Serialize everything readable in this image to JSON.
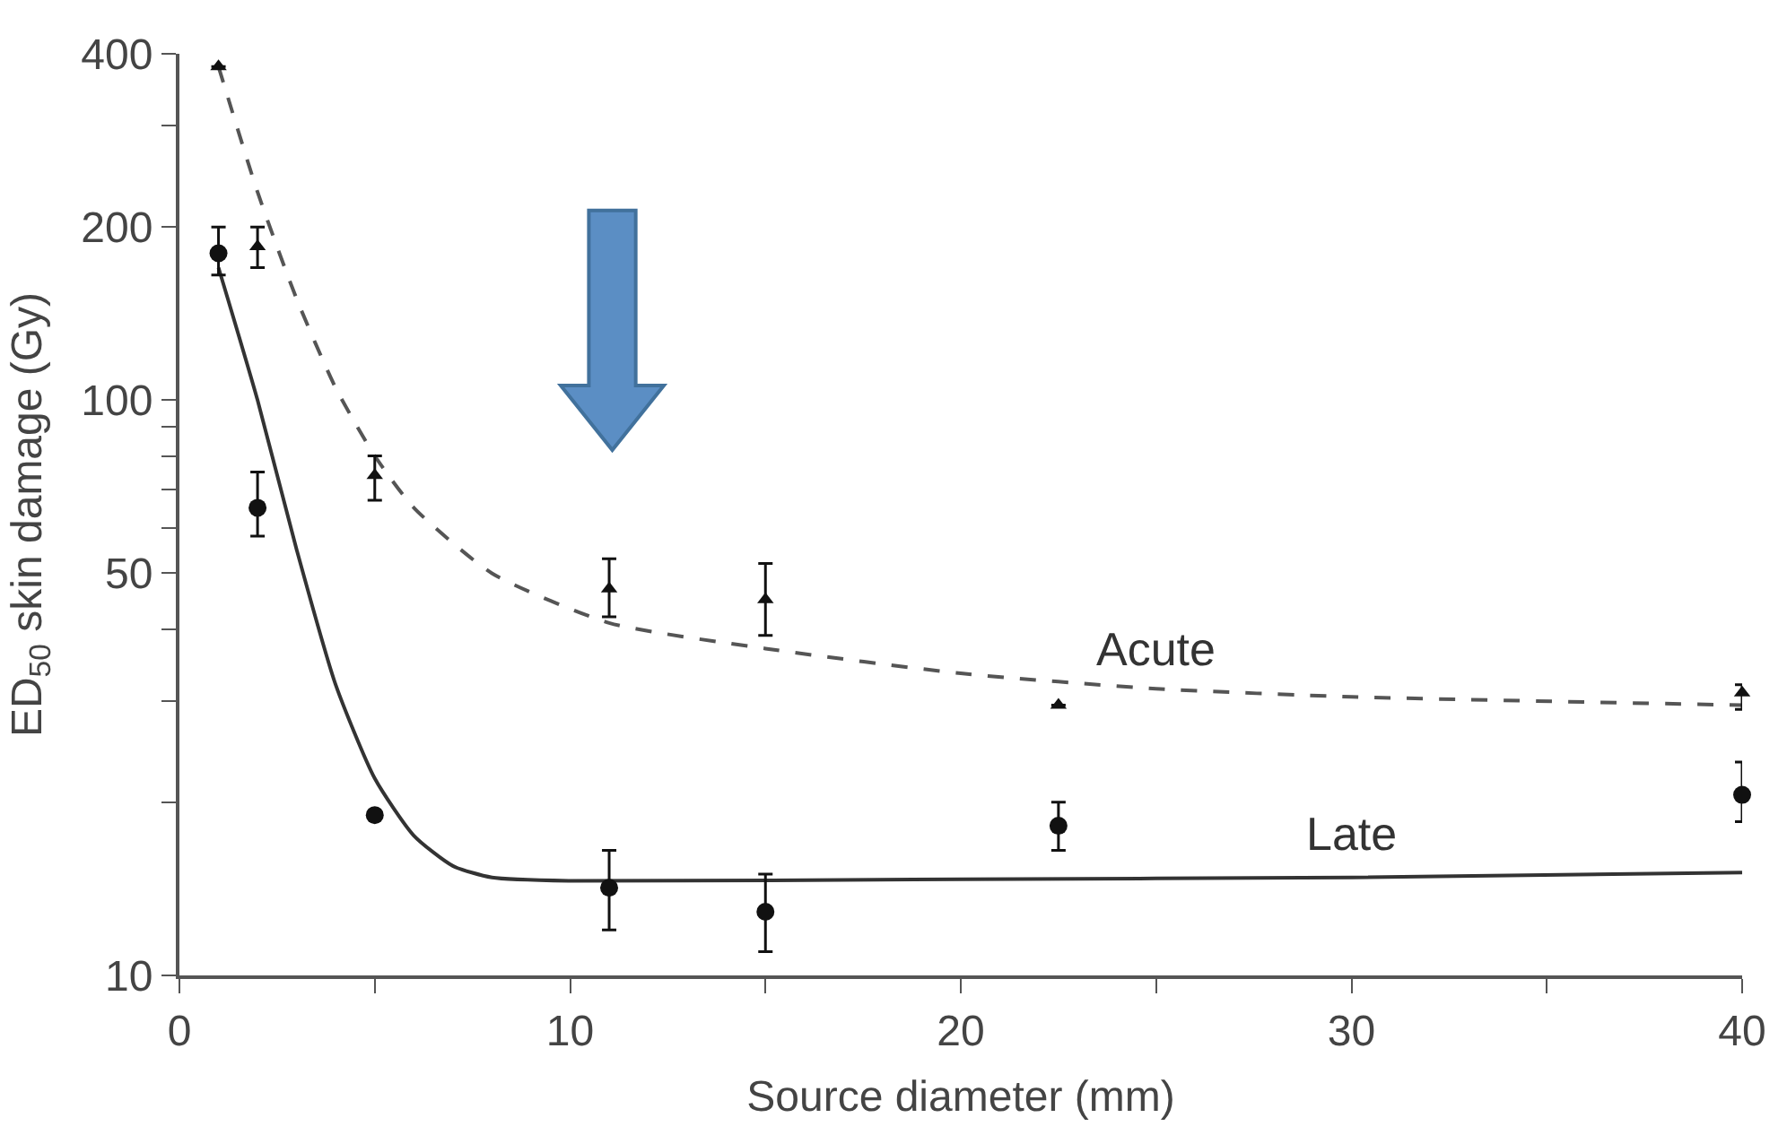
{
  "chart_data": {
    "type": "scatter",
    "xlabel": "Source diameter (mm)",
    "ylabel": "ED$_{50}$ skin damage (Gy)",
    "log": "y",
    "xlim": [
      0,
      40
    ],
    "xticks": [
      0,
      {
        "value": 5,
        "label": null
      },
      10,
      {
        "value": 15,
        "label": null
      },
      20,
      {
        "value": 25,
        "label": null
      },
      30,
      {
        "value": 35,
        "label": null
      },
      40
    ],
    "ylim": [
      10,
      400
    ],
    "yticks": [
      10,
      {
        "value": 20,
        "label": null
      },
      {
        "value": 30,
        "label": null
      },
      {
        "value": 40,
        "label": null
      },
      50,
      {
        "value": 60,
        "label": null
      },
      {
        "value": 70,
        "label": null
      },
      {
        "value": 80,
        "label": null
      },
      {
        "value": 90,
        "label": null
      },
      100,
      200,
      {
        "value": 300,
        "label": null
      },
      400
    ],
    "series": [
      {
        "type": "line",
        "name": "Acute",
        "color": "#555555",
        "line_style": "dashed",
        "marker": "none",
        "x": [
          1,
          2,
          3,
          4,
          5,
          6,
          8,
          11,
          15,
          20,
          25,
          30,
          40
        ],
        "values": [
          380,
          230,
          150,
          105,
          80,
          65,
          50,
          41,
          37,
          33.5,
          31.5,
          30.5,
          29.5
        ]
      },
      {
        "type": "line",
        "name": "Late",
        "color": "#333333",
        "line_style": "solid",
        "marker": "none",
        "x": [
          1,
          2,
          3,
          4,
          5,
          6,
          7,
          8,
          10,
          20,
          30,
          40
        ],
        "values": [
          170,
          100,
          55,
          32,
          22,
          17.5,
          15.5,
          14.8,
          14.6,
          14.7,
          14.8,
          15.1
        ]
      },
      {
        "color": "#111111",
        "marker": "triangle",
        "x": [
          1,
          2,
          5,
          11,
          15,
          22.5,
          40
        ],
        "values": [
          380,
          185,
          74,
          47,
          45,
          29.5,
          31
        ],
        "errors": [
          null,
          [
            170,
            200
          ],
          [
            67,
            80
          ],
          [
            42,
            53
          ],
          [
            39,
            52
          ],
          null,
          [
            29,
            32
          ]
        ]
      },
      {
        "color": "#111111",
        "marker": "circle",
        "x": [
          1,
          2,
          5,
          11,
          15,
          22.5,
          40
        ],
        "values": [
          180,
          65,
          19,
          14.2,
          12.9,
          18.2,
          20.6
        ],
        "errors": [
          [
            165,
            200
          ],
          [
            58,
            75
          ],
          null,
          [
            12,
            16.5
          ],
          [
            11,
            15
          ],
          [
            16.5,
            20
          ],
          [
            18.5,
            23.5
          ]
        ]
      }
    ]
  }
}
